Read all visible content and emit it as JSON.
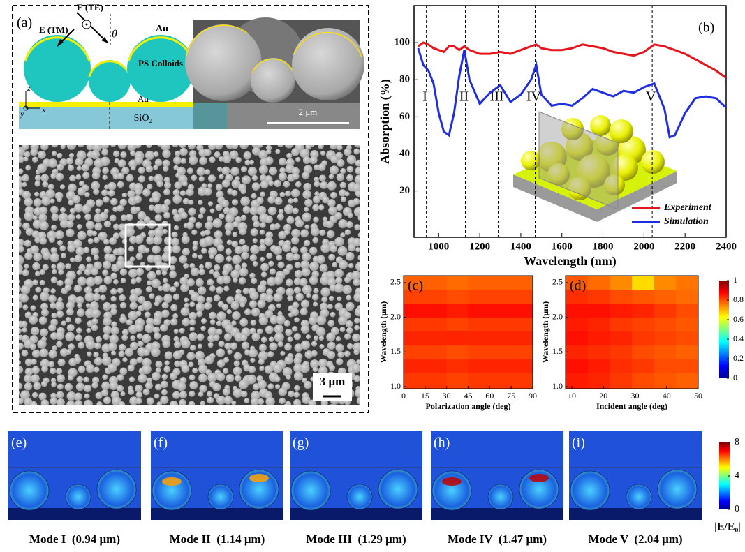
{
  "chart_data": [
    {
      "type": "line",
      "label": "(b)",
      "xlabel": "Wavelength (nm)",
      "ylabel": "Absorption (%)",
      "x": [
        900,
        925,
        950,
        975,
        1000,
        1025,
        1050,
        1075,
        1100,
        1125,
        1150,
        1200,
        1250,
        1300,
        1350,
        1400,
        1450,
        1475,
        1500,
        1550,
        1600,
        1650,
        1700,
        1750,
        1800,
        1850,
        1900,
        1950,
        2000,
        2050,
        2100,
        2125,
        2150,
        2200,
        2250,
        2300,
        2350,
        2400
      ],
      "series": [
        {
          "name": "Experiment",
          "color": "#e8141b",
          "values": [
            98,
            100,
            99,
            97,
            96,
            95,
            98,
            98,
            96,
            98,
            96,
            94,
            94,
            95,
            94,
            96,
            98,
            99,
            97,
            96,
            96,
            97,
            99,
            98,
            97,
            95,
            94,
            93,
            95,
            99,
            98,
            97,
            96,
            94,
            91,
            88,
            85,
            81
          ]
        },
        {
          "name": "Simulation",
          "color": "#1f2ee0",
          "values": [
            97,
            88,
            85,
            78,
            62,
            52,
            50,
            62,
            82,
            96,
            80,
            67,
            73,
            77,
            68,
            72,
            80,
            88,
            72,
            66,
            67,
            66,
            70,
            75,
            73,
            71,
            74,
            73,
            76,
            78,
            64,
            49,
            50,
            62,
            70,
            71,
            70,
            65
          ]
        }
      ],
      "xlim": [
        880,
        2400
      ],
      "ylim": [
        -5,
        120
      ],
      "xticks": [
        1000,
        1200,
        1400,
        1600,
        1800,
        2000,
        2200,
        2400
      ],
      "yticks": [
        20,
        40,
        60,
        80,
        100
      ],
      "annotations": [
        {
          "x": 940,
          "text": "I"
        },
        {
          "x": 1130,
          "text": "II"
        },
        {
          "x": 1290,
          "text": "III"
        },
        {
          "x": 1470,
          "text": "IV"
        },
        {
          "x": 2040,
          "text": "V"
        }
      ],
      "legend": "lower right"
    },
    {
      "type": "heatmap",
      "label": "(c)",
      "xlabel": "Polarization angle (deg)",
      "ylabel": "Wavelength (μm)",
      "colormap": "jet",
      "xbins": [
        0,
        15,
        30,
        45,
        60,
        75,
        90
      ],
      "ybins": [
        0.97,
        1.2,
        1.4,
        1.6,
        1.8,
        2.0,
        2.2,
        2.4,
        2.6
      ],
      "z": [
        [
          0.82,
          0.82,
          0.81,
          0.82,
          0.82,
          0.82
        ],
        [
          0.84,
          0.84,
          0.83,
          0.84,
          0.84,
          0.84
        ],
        [
          0.81,
          0.81,
          0.8,
          0.81,
          0.81,
          0.81
        ],
        [
          0.84,
          0.84,
          0.84,
          0.84,
          0.84,
          0.84
        ],
        [
          0.82,
          0.82,
          0.81,
          0.82,
          0.82,
          0.82
        ],
        [
          0.86,
          0.86,
          0.85,
          0.86,
          0.86,
          0.86
        ],
        [
          0.81,
          0.81,
          0.8,
          0.81,
          0.81,
          0.81
        ],
        [
          0.78,
          0.78,
          0.77,
          0.78,
          0.78,
          0.78
        ]
      ],
      "xlim": [
        0,
        90
      ],
      "ylim": [
        0.97,
        2.6
      ],
      "xticks": [
        0,
        15,
        30,
        45,
        60,
        75,
        90
      ],
      "yticks": [
        {
          "value": 1,
          "label": "1.0"
        },
        {
          "value": 1.5,
          "label": "1.5"
        },
        {
          "value": 2,
          "label": "2.0"
        },
        {
          "value": 2.5,
          "label": "2.5"
        }
      ]
    },
    {
      "type": "heatmap",
      "label": "(d)",
      "xlabel": "Incident angle (deg)",
      "ylabel": "Wavelength (μm)",
      "colormap": "jet",
      "xbins": [
        8,
        15,
        22,
        29,
        36,
        43,
        50
      ],
      "ybins": [
        0.97,
        1.2,
        1.4,
        1.6,
        1.8,
        2.0,
        2.2,
        2.4,
        2.6
      ],
      "z": [
        [
          0.85,
          0.84,
          0.82,
          0.8,
          0.79,
          0.78
        ],
        [
          0.86,
          0.85,
          0.83,
          0.82,
          0.8,
          0.8
        ],
        [
          0.84,
          0.83,
          0.82,
          0.8,
          0.79,
          0.78
        ],
        [
          0.86,
          0.85,
          0.84,
          0.82,
          0.81,
          0.8
        ],
        [
          0.85,
          0.84,
          0.82,
          0.81,
          0.8,
          0.79
        ],
        [
          0.86,
          0.86,
          0.85,
          0.84,
          0.82,
          0.8
        ],
        [
          0.83,
          0.82,
          0.8,
          0.79,
          0.78,
          0.77
        ],
        [
          0.79,
          0.77,
          0.74,
          0.66,
          0.74,
          0.76
        ]
      ],
      "xlim": [
        8,
        50
      ],
      "ylim": [
        0.97,
        2.6
      ],
      "xticks": [
        10,
        20,
        30,
        40,
        50
      ],
      "yticks": [
        {
          "value": 1,
          "label": "1.0"
        },
        {
          "value": 1.5,
          "label": "1.5"
        },
        {
          "value": 2,
          "label": "2.0"
        },
        {
          "value": 2.5,
          "label": "2.5"
        }
      ],
      "colorbar": {
        "clim": [
          0,
          1
        ],
        "ticks": [
          0,
          0.2,
          0.4,
          0.6,
          0.8,
          1
        ]
      }
    }
  ],
  "panel_a": {
    "label": "(a)",
    "e_te": "E (TE)",
    "e_tm": "E (TM)",
    "theta": "θ",
    "au_top": "Au",
    "ps": "PS Colloids",
    "au_layer": "Au",
    "sio2": "SiO₂",
    "axis_z": "z",
    "axis_y": "y",
    "axis_x": "x",
    "scale_inset": "2 μm",
    "scale_main": "3 μm"
  },
  "field_maps": {
    "panels": [
      {
        "label": "(e)",
        "caption": "Mode I  (0.94 μm)"
      },
      {
        "label": "(f)",
        "caption": "Mode II  (1.14 μm)"
      },
      {
        "label": "(g)",
        "caption": "Mode III  (1.29 μm)"
      },
      {
        "label": "(h)",
        "caption": "Mode IV  (1.47 μm)"
      },
      {
        "label": "(i)",
        "caption": "Mode V  (2.04 μm)"
      }
    ],
    "colorbar": {
      "clim": [
        0,
        8
      ],
      "ticks": [
        0,
        4,
        8
      ],
      "label": "|E/E₀|"
    }
  }
}
